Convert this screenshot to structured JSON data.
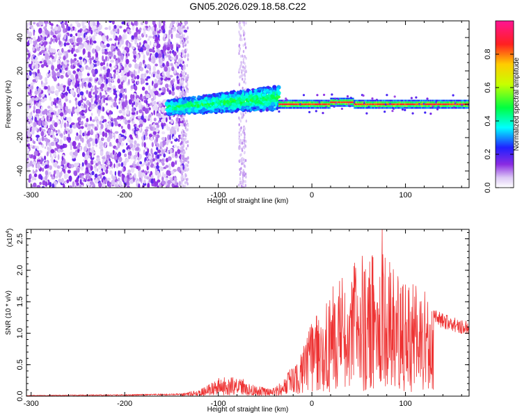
{
  "title": "GN05.2026.029.18.58.C22",
  "chart_data": [
    {
      "type": "heatmap",
      "name": "spectrogram",
      "xlabel": "Height of straight line (km)",
      "ylabel": "Frequency (Hz)",
      "xlim": [
        -305,
        168
      ],
      "ylim": [
        -50,
        50
      ],
      "xticks": [
        -300,
        -200,
        -100,
        0,
        100
      ],
      "yticks": [
        -40,
        -20,
        0,
        20,
        40
      ],
      "colorbar": {
        "label": "Normalized spectral amplitude",
        "range": [
          0,
          1
        ],
        "ticks": [
          0.0,
          0.2,
          0.4,
          0.6,
          0.8
        ]
      },
      "features": [
        {
          "region": "broadband noise",
          "x_range": [
            -305,
            -135
          ],
          "freq_range": [
            -50,
            50
          ],
          "amplitude": 0.1
        },
        {
          "region": "rising band",
          "x_range": [
            -155,
            -35
          ],
          "freq_range": [
            -10,
            15
          ],
          "amplitude": 0.35
        },
        {
          "region": "narrow carrier",
          "x_range": [
            -35,
            168
          ],
          "freq_center": 0,
          "freq_halfwidth": 2,
          "amplitude": 0.85
        }
      ]
    },
    {
      "type": "line",
      "name": "snr",
      "xlabel": "Height of straight line (km)",
      "ylabel": "SNR (10 * v/v)",
      "y_multiplier": "(x10",
      "y_multiplier_exp": "4",
      "xlim": [
        -305,
        168
      ],
      "ylim": [
        0,
        2.65
      ],
      "xticks": [
        -300,
        -200,
        -100,
        0,
        100
      ],
      "yticks": [
        0.0,
        0.5,
        1.0,
        1.5,
        2.0,
        2.5
      ],
      "color": "#ee3333",
      "envelope": {
        "x": [
          -305,
          -200,
          -140,
          -120,
          -100,
          -80,
          -60,
          -40,
          -25,
          -10,
          0,
          10,
          20,
          30,
          40,
          50,
          60,
          70,
          80,
          90,
          100,
          110,
          120,
          130,
          140,
          150,
          160,
          168
        ],
        "y": [
          0.01,
          0.02,
          0.03,
          0.08,
          0.22,
          0.26,
          0.12,
          0.1,
          0.3,
          0.6,
          0.9,
          1.1,
          1.3,
          1.5,
          1.6,
          1.7,
          1.75,
          1.8,
          1.7,
          1.5,
          1.4,
          1.4,
          1.3,
          1.25,
          1.2,
          1.15,
          1.1,
          1.08
        ]
      },
      "peak": {
        "x": 75,
        "y": 2.65
      }
    }
  ]
}
